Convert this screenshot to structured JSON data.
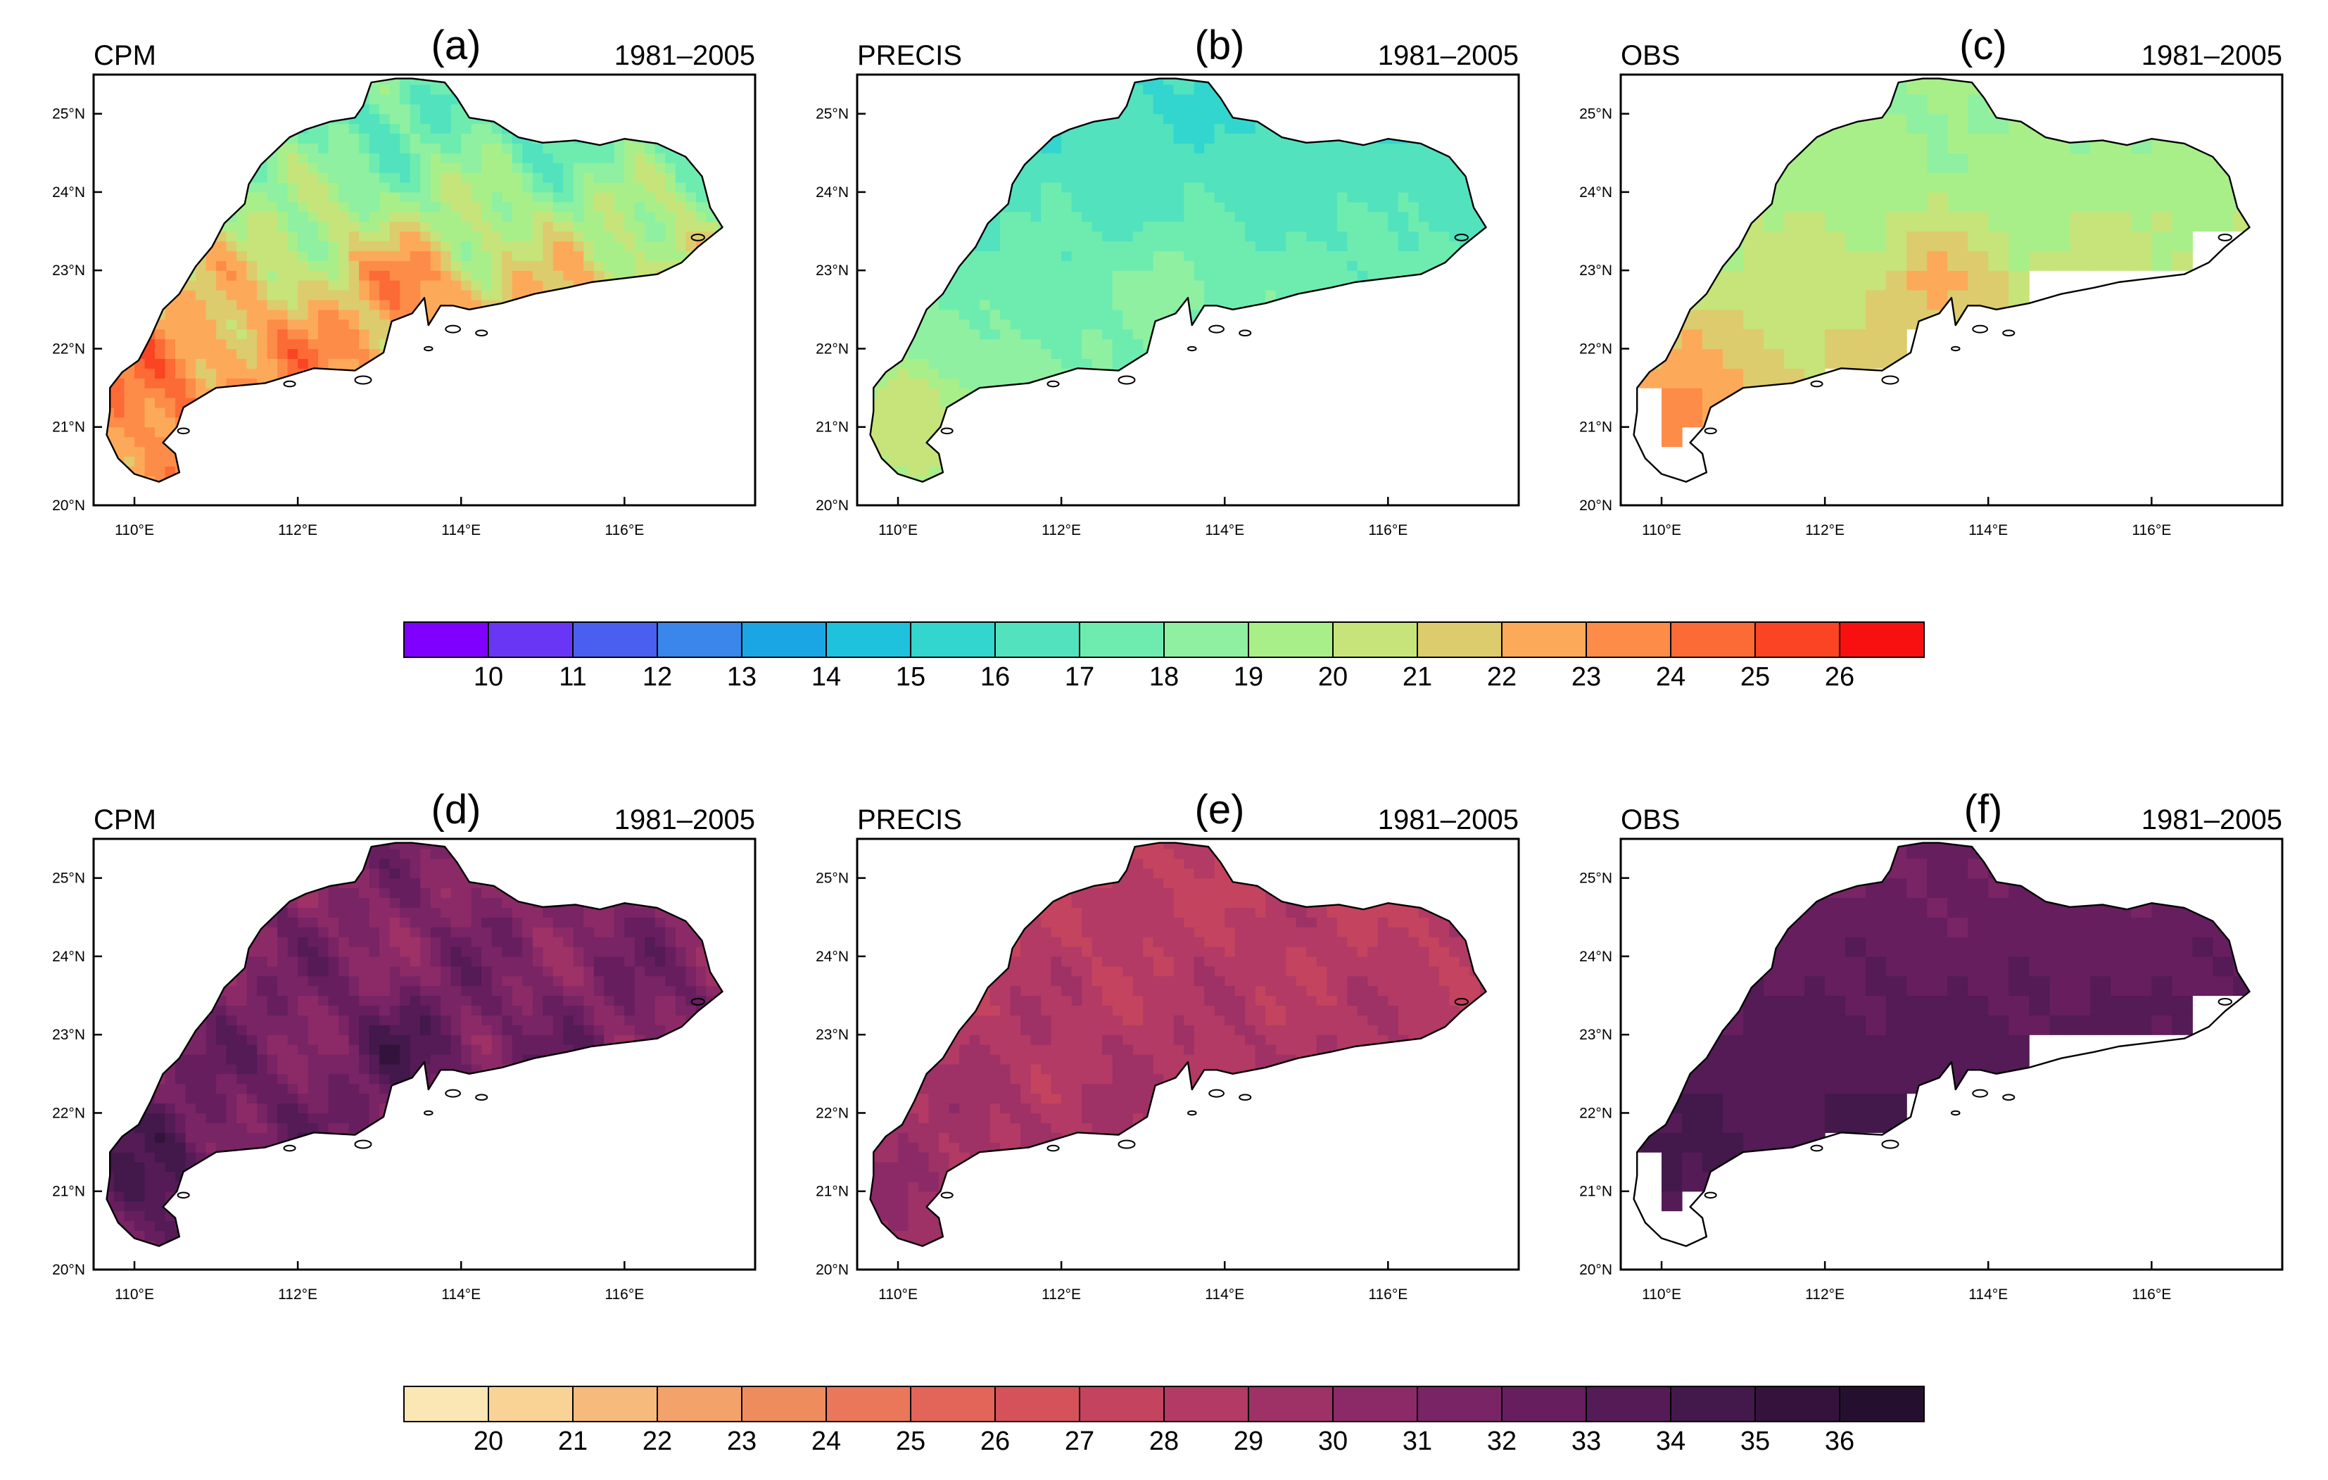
{
  "figure": {
    "panels": [
      {
        "id": "a",
        "letter": "(a)",
        "source": "CPM",
        "period": "1981–2005",
        "colorbar": 0
      },
      {
        "id": "b",
        "letter": "(b)",
        "source": "PRECIS",
        "period": "1981–2005",
        "colorbar": 0
      },
      {
        "id": "c",
        "letter": "(c)",
        "source": "OBS",
        "period": "1981–2005",
        "colorbar": 0
      },
      {
        "id": "d",
        "letter": "(d)",
        "source": "CPM",
        "period": "1981–2005",
        "colorbar": 1
      },
      {
        "id": "e",
        "letter": "(e)",
        "source": "PRECIS",
        "period": "1981–2005",
        "colorbar": 1
      },
      {
        "id": "f",
        "letter": "(f)",
        "source": "OBS",
        "period": "1981–2005",
        "colorbar": 1
      }
    ],
    "colorbars": [
      {
        "labels": [
          "10",
          "11",
          "12",
          "13",
          "14",
          "15",
          "16",
          "17",
          "18",
          "19",
          "20",
          "21",
          "22",
          "23",
          "24",
          "25",
          "26"
        ],
        "colors": [
          "#8000ff",
          "#6a36f5",
          "#4a5ef0",
          "#3a86ea",
          "#1aa6e4",
          "#1ec2dc",
          "#32d6cf",
          "#52e2be",
          "#6eecb0",
          "#8ef0a0",
          "#a8ef8a",
          "#c6e47a",
          "#dccc6e",
          "#fcaa5a",
          "#fc8c48",
          "#fc6a36",
          "#fa4424",
          "#f81010"
        ]
      },
      {
        "labels": [
          "20",
          "21",
          "22",
          "23",
          "24",
          "25",
          "26",
          "27",
          "28",
          "29",
          "30",
          "31",
          "32",
          "33",
          "34",
          "35",
          "36"
        ],
        "colors": [
          "#fbe7b3",
          "#f9d296",
          "#f6ba7c",
          "#f3a26a",
          "#ef8c5e",
          "#eb775a",
          "#e36458",
          "#d5525b",
          "#c4435f",
          "#b23a64",
          "#9e3166",
          "#8c2a67",
          "#792464",
          "#661e5f",
          "#541b56",
          "#43184b",
          "#33133c",
          "#24102e"
        ]
      }
    ],
    "map_axes": {
      "x_ticks": [
        "110°E",
        "112°E",
        "114°E",
        "116°E"
      ],
      "y_ticks": [
        "25°N",
        "24°N",
        "23°N",
        "22°N",
        "21°N",
        "20°N"
      ]
    }
  },
  "chart_data": [
    {
      "type": "heatmap",
      "panel": "a",
      "title": "CPM",
      "subtitle": "1981–2005",
      "scale_min": 10,
      "scale_max": 26,
      "spatial_mean": 22,
      "description_values": {
        "north": 17,
        "central": 23,
        "pearl_river_delta": 25,
        "southwest": 24
      },
      "xlim": [
        109.5,
        117.6
      ],
      "ylim": [
        20,
        25.5
      ],
      "xticks": [
        110,
        112,
        114,
        116
      ],
      "yticks": [
        20,
        21,
        22,
        23,
        24,
        25
      ]
    },
    {
      "type": "heatmap",
      "panel": "b",
      "title": "PRECIS",
      "subtitle": "1981–2005",
      "scale_min": 10,
      "scale_max": 26,
      "spatial_mean": 18.5,
      "description_values": {
        "north": 16,
        "central": 18,
        "pearl_river_delta": 19,
        "southwest": 21
      },
      "xlim": [
        109.5,
        117.6
      ],
      "ylim": [
        20,
        25.5
      ],
      "xticks": [
        110,
        112,
        114,
        116
      ],
      "yticks": [
        20,
        21,
        22,
        23,
        24,
        25
      ]
    },
    {
      "type": "heatmap",
      "panel": "c",
      "title": "OBS",
      "subtitle": "1981–2005",
      "scale_min": 10,
      "scale_max": 26,
      "spatial_mean": 21,
      "description_values": {
        "north": 19,
        "central": 21,
        "pearl_river_delta": 23,
        "southwest": 24
      },
      "xlim": [
        109.5,
        117.6
      ],
      "ylim": [
        20,
        25.5
      ],
      "xticks": [
        110,
        112,
        114,
        116
      ],
      "yticks": [
        20,
        21,
        22,
        23,
        24,
        25
      ]
    },
    {
      "type": "heatmap",
      "panel": "d",
      "title": "CPM",
      "subtitle": "1981–2005",
      "scale_min": 20,
      "scale_max": 36,
      "spatial_mean": 32,
      "description_values": {
        "north": 31,
        "central": 32,
        "pearl_river_delta": 34,
        "southwest": 34
      },
      "xlim": [
        109.5,
        117.6
      ],
      "ylim": [
        20,
        25.5
      ],
      "xticks": [
        110,
        112,
        114,
        116
      ],
      "yticks": [
        20,
        21,
        22,
        23,
        24,
        25
      ]
    },
    {
      "type": "heatmap",
      "panel": "e",
      "title": "PRECIS",
      "subtitle": "1981–2005",
      "scale_min": 20,
      "scale_max": 36,
      "spatial_mean": 29,
      "description_values": {
        "north": 28,
        "central": 29,
        "pearl_river_delta": 29,
        "southwest": 30
      },
      "xlim": [
        109.5,
        117.6
      ],
      "ylim": [
        20,
        25.5
      ],
      "xticks": [
        110,
        112,
        114,
        116
      ],
      "yticks": [
        20,
        21,
        22,
        23,
        24,
        25
      ]
    },
    {
      "type": "heatmap",
      "panel": "f",
      "title": "OBS",
      "subtitle": "1981–2005",
      "scale_min": 20,
      "scale_max": 36,
      "spatial_mean": 33,
      "description_values": {
        "north": 32,
        "central": 34,
        "pearl_river_delta": 34,
        "southwest": 34
      },
      "xlim": [
        109.5,
        117.6
      ],
      "ylim": [
        20,
        25.5
      ],
      "xticks": [
        110,
        112,
        114,
        116
      ],
      "yticks": [
        20,
        21,
        22,
        23,
        24,
        25
      ]
    }
  ]
}
